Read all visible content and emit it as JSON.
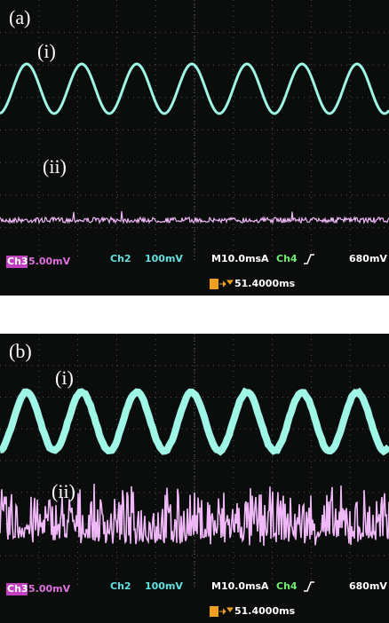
{
  "panels": [
    {
      "label": "(a)",
      "traces": [
        "(i)",
        "(ii)"
      ],
      "status": {
        "ch3": "Ch3",
        "ch3_scale": "5.00mV",
        "ch2": "Ch2",
        "ch2_scale": "100mV",
        "timebase": "M10.0ms",
        "trigger_mode": "A",
        "trigger_ch": "Ch4",
        "trigger_level": "680mV",
        "trigger_pos": "51.4000ms"
      }
    },
    {
      "label": "(b)",
      "traces": [
        "(i)",
        "(ii)"
      ],
      "status": {
        "ch3": "Ch3",
        "ch3_scale": "5.00mV",
        "ch2": "Ch2",
        "ch2_scale": "100mV",
        "timebase": "M10.0ms",
        "trigger_mode": "A",
        "trigger_ch": "Ch4",
        "trigger_level": "680mV",
        "trigger_pos": "51.4000ms"
      }
    }
  ]
}
